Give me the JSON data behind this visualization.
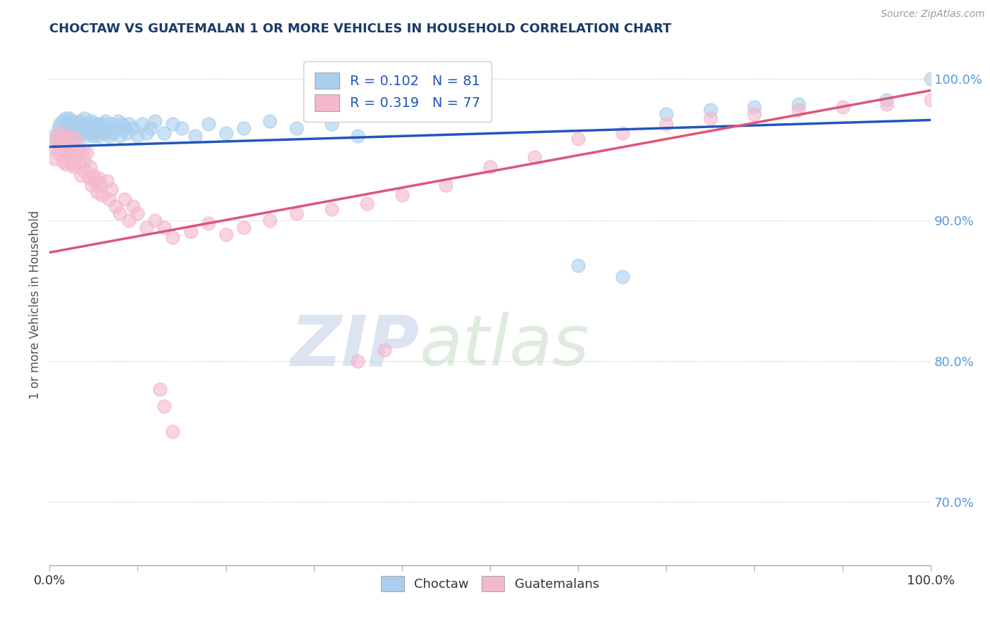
{
  "title": "CHOCTAW VS GUATEMALAN 1 OR MORE VEHICLES IN HOUSEHOLD CORRELATION CHART",
  "source": "Source: ZipAtlas.com",
  "ylabel": "1 or more Vehicles in Household",
  "yticks": [
    "70.0%",
    "80.0%",
    "90.0%",
    "100.0%"
  ],
  "ytick_vals": [
    0.7,
    0.8,
    0.9,
    1.0
  ],
  "xrange": [
    0.0,
    1.0
  ],
  "yrange": [
    0.655,
    1.025
  ],
  "legend_choctaw_R": "0.102",
  "legend_choctaw_N": "81",
  "legend_guatemalan_R": "0.319",
  "legend_guatemalan_N": "77",
  "choctaw_color": "#aacfee",
  "guatemalan_color": "#f4b8cc",
  "choctaw_line_color": "#2255bb",
  "guatemalan_line_color": "#dd5577",
  "background_color": "#ffffff",
  "watermark_zip": "ZIP",
  "watermark_atlas": "atlas",
  "choctaw_x": [
    0.005,
    0.008,
    0.01,
    0.01,
    0.012,
    0.015,
    0.015,
    0.016,
    0.018,
    0.018,
    0.02,
    0.02,
    0.022,
    0.022,
    0.024,
    0.025,
    0.025,
    0.026,
    0.028,
    0.028,
    0.03,
    0.03,
    0.032,
    0.033,
    0.034,
    0.035,
    0.036,
    0.038,
    0.04,
    0.04,
    0.042,
    0.043,
    0.045,
    0.046,
    0.048,
    0.05,
    0.05,
    0.052,
    0.054,
    0.055,
    0.056,
    0.058,
    0.06,
    0.062,
    0.064,
    0.065,
    0.068,
    0.07,
    0.072,
    0.075,
    0.078,
    0.08,
    0.082,
    0.085,
    0.088,
    0.09,
    0.095,
    0.1,
    0.105,
    0.11,
    0.115,
    0.12,
    0.13,
    0.14,
    0.15,
    0.165,
    0.18,
    0.2,
    0.22,
    0.25,
    0.28,
    0.32,
    0.35,
    0.6,
    0.65,
    0.7,
    0.75,
    0.8,
    0.85,
    0.95,
    1.0
  ],
  "choctaw_y": [
    0.96,
    0.958,
    0.965,
    0.955,
    0.968,
    0.962,
    0.97,
    0.958,
    0.965,
    0.972,
    0.96,
    0.968,
    0.962,
    0.972,
    0.958,
    0.965,
    0.96,
    0.97,
    0.962,
    0.968,
    0.96,
    0.965,
    0.968,
    0.962,
    0.97,
    0.965,
    0.968,
    0.962,
    0.965,
    0.972,
    0.96,
    0.968,
    0.962,
    0.965,
    0.97,
    0.96,
    0.968,
    0.962,
    0.966,
    0.968,
    0.96,
    0.965,
    0.968,
    0.962,
    0.97,
    0.965,
    0.96,
    0.968,
    0.962,
    0.965,
    0.97,
    0.96,
    0.968,
    0.965,
    0.962,
    0.968,
    0.965,
    0.96,
    0.968,
    0.962,
    0.965,
    0.97,
    0.962,
    0.968,
    0.965,
    0.96,
    0.968,
    0.962,
    0.965,
    0.97,
    0.965,
    0.968,
    0.96,
    0.868,
    0.86,
    0.975,
    0.978,
    0.98,
    0.982,
    0.985,
    1.0
  ],
  "guatemalan_x": [
    0.005,
    0.005,
    0.008,
    0.01,
    0.01,
    0.012,
    0.015,
    0.015,
    0.016,
    0.018,
    0.018,
    0.02,
    0.02,
    0.022,
    0.022,
    0.025,
    0.025,
    0.026,
    0.028,
    0.03,
    0.03,
    0.032,
    0.034,
    0.035,
    0.036,
    0.038,
    0.04,
    0.04,
    0.042,
    0.045,
    0.046,
    0.048,
    0.05,
    0.052,
    0.054,
    0.056,
    0.058,
    0.06,
    0.065,
    0.068,
    0.07,
    0.075,
    0.08,
    0.085,
    0.09,
    0.095,
    0.1,
    0.11,
    0.12,
    0.13,
    0.14,
    0.16,
    0.18,
    0.2,
    0.22,
    0.25,
    0.28,
    0.32,
    0.36,
    0.4,
    0.45,
    0.5,
    0.55,
    0.6,
    0.65,
    0.7,
    0.75,
    0.8,
    0.85,
    0.9,
    0.95,
    1.0,
    0.38,
    0.35,
    0.125,
    0.13,
    0.14
  ],
  "guatemalan_y": [
    0.952,
    0.944,
    0.958,
    0.962,
    0.948,
    0.96,
    0.958,
    0.942,
    0.955,
    0.95,
    0.94,
    0.958,
    0.945,
    0.96,
    0.948,
    0.955,
    0.94,
    0.95,
    0.938,
    0.958,
    0.945,
    0.952,
    0.94,
    0.948,
    0.932,
    0.95,
    0.942,
    0.935,
    0.948,
    0.93,
    0.938,
    0.925,
    0.932,
    0.928,
    0.92,
    0.93,
    0.925,
    0.918,
    0.928,
    0.915,
    0.922,
    0.91,
    0.905,
    0.915,
    0.9,
    0.91,
    0.905,
    0.895,
    0.9,
    0.895,
    0.888,
    0.892,
    0.898,
    0.89,
    0.895,
    0.9,
    0.905,
    0.908,
    0.912,
    0.918,
    0.925,
    0.938,
    0.945,
    0.958,
    0.962,
    0.968,
    0.972,
    0.975,
    0.978,
    0.98,
    0.982,
    0.985,
    0.808,
    0.8,
    0.78,
    0.768,
    0.75
  ]
}
